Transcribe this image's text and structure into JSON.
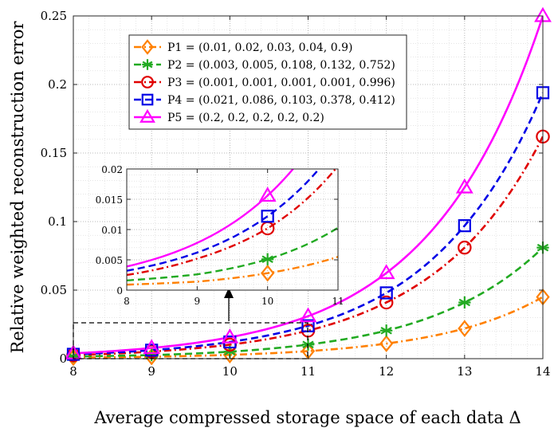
{
  "chart_data": {
    "type": "line",
    "title": "",
    "xlabel": "Average compressed storage space of each data Δ",
    "ylabel": "Relative weighted reconstruction error",
    "xlim": [
      8,
      14
    ],
    "ylim": [
      0,
      0.25
    ],
    "xticks": [
      "8",
      "9",
      "10",
      "11",
      "12",
      "13",
      "14"
    ],
    "yticks": [
      "0",
      "0.05",
      "0.1",
      "0.15",
      "0.2",
      "0.25"
    ],
    "grid": "on (major and minor dotted)",
    "legend_position": "upper-left",
    "x": [
      8,
      9,
      10,
      11,
      12,
      13,
      14
    ],
    "series": [
      {
        "name": "P1 = (0.01, 0.02, 0.03, 0.04, 0.9)",
        "color": "#ff8000",
        "line": "dash-dot",
        "marker": "diamond",
        "values": [
          0.0009,
          0.0014,
          0.0028,
          0.0055,
          0.011,
          0.022,
          0.045
        ]
      },
      {
        "name": "P2 = (0.003, 0.005, 0.108, 0.132, 0.752)",
        "color": "#22aa22",
        "line": "dashed",
        "marker": "asterisk",
        "values": [
          0.0016,
          0.0026,
          0.0051,
          0.0103,
          0.0205,
          0.041,
          0.081
        ]
      },
      {
        "name": "P3 = (0.001, 0.001, 0.001, 0.001, 0.996)",
        "color": "#e00000",
        "line": "dash-dot",
        "marker": "circle",
        "values": [
          0.0025,
          0.0052,
          0.0102,
          0.0205,
          0.041,
          0.081,
          0.162
        ]
      },
      {
        "name": "P4 = (0.021, 0.086, 0.103, 0.378, 0.412)",
        "color": "#0000e6",
        "line": "dashed",
        "marker": "square",
        "values": [
          0.0032,
          0.0062,
          0.0122,
          0.024,
          0.048,
          0.097,
          0.194
        ]
      },
      {
        "name": "P5 = (0.2, 0.2, 0.2, 0.2, 0.2)",
        "color": "#ff00ff",
        "line": "solid",
        "marker": "triangle",
        "values": [
          0.0039,
          0.0078,
          0.0156,
          0.031,
          0.0625,
          0.125,
          0.25
        ]
      }
    ],
    "inset": {
      "xlim": [
        8,
        11
      ],
      "ylim": [
        0,
        0.02
      ],
      "xticks": [
        "8",
        "9",
        "10",
        "11"
      ],
      "yticks": [
        "0",
        "0.005",
        "0.01",
        "0.015",
        "0.02"
      ]
    }
  }
}
